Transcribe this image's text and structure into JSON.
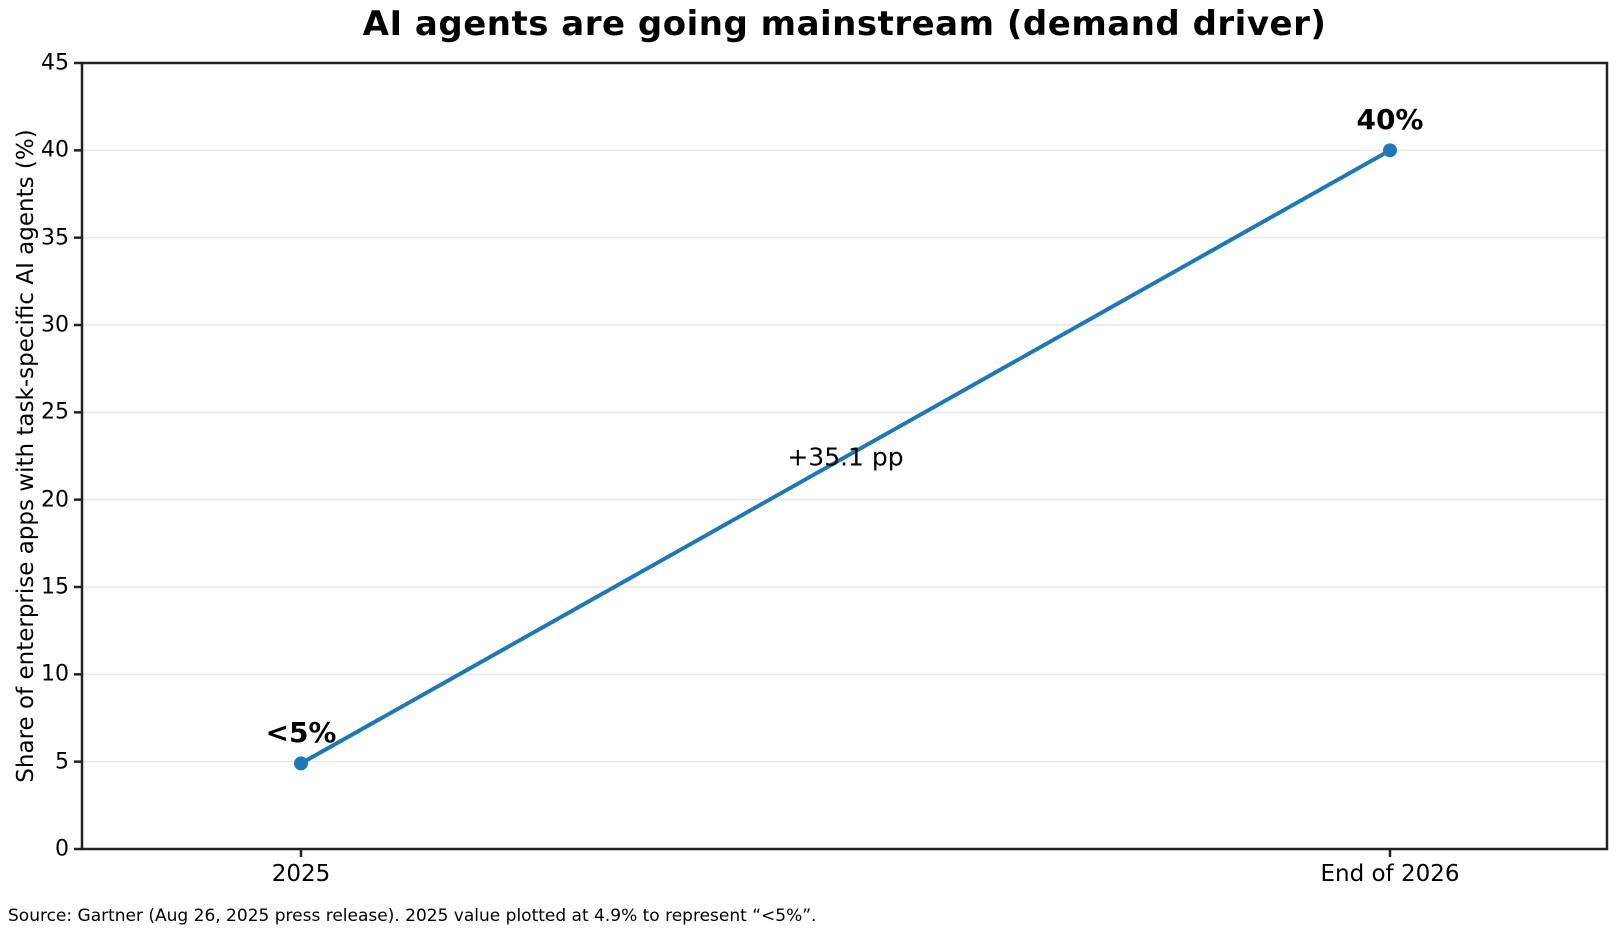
{
  "source_note": "Source: Gartner (Aug 26, 2025 press release). 2025 value plotted at 4.9% to represent “<5%”.",
  "chart_data": {
    "type": "line",
    "title": "AI agents are going mainstream (demand driver)",
    "categories": [
      "2025",
      "End of 2026"
    ],
    "values": [
      4.9,
      40
    ],
    "point_labels": [
      "<5%",
      "40%"
    ],
    "delta_annotation": "+35.1 pp",
    "xlabel": "",
    "ylabel": "Share of enterprise apps with task-specific AI agents (%)",
    "ylim": [
      0,
      45
    ],
    "ytick_step": 5,
    "yticks": [
      0,
      5,
      10,
      15,
      20,
      25,
      30,
      35,
      40,
      45
    ],
    "grid": "horizontal-only",
    "legend": "none",
    "colors": {
      "line": "#1f77b4",
      "marker": "#1f77b4",
      "spine": "#222222",
      "gridline": "#e6e6e6",
      "text": "#000000",
      "background": "#ffffff"
    }
  }
}
